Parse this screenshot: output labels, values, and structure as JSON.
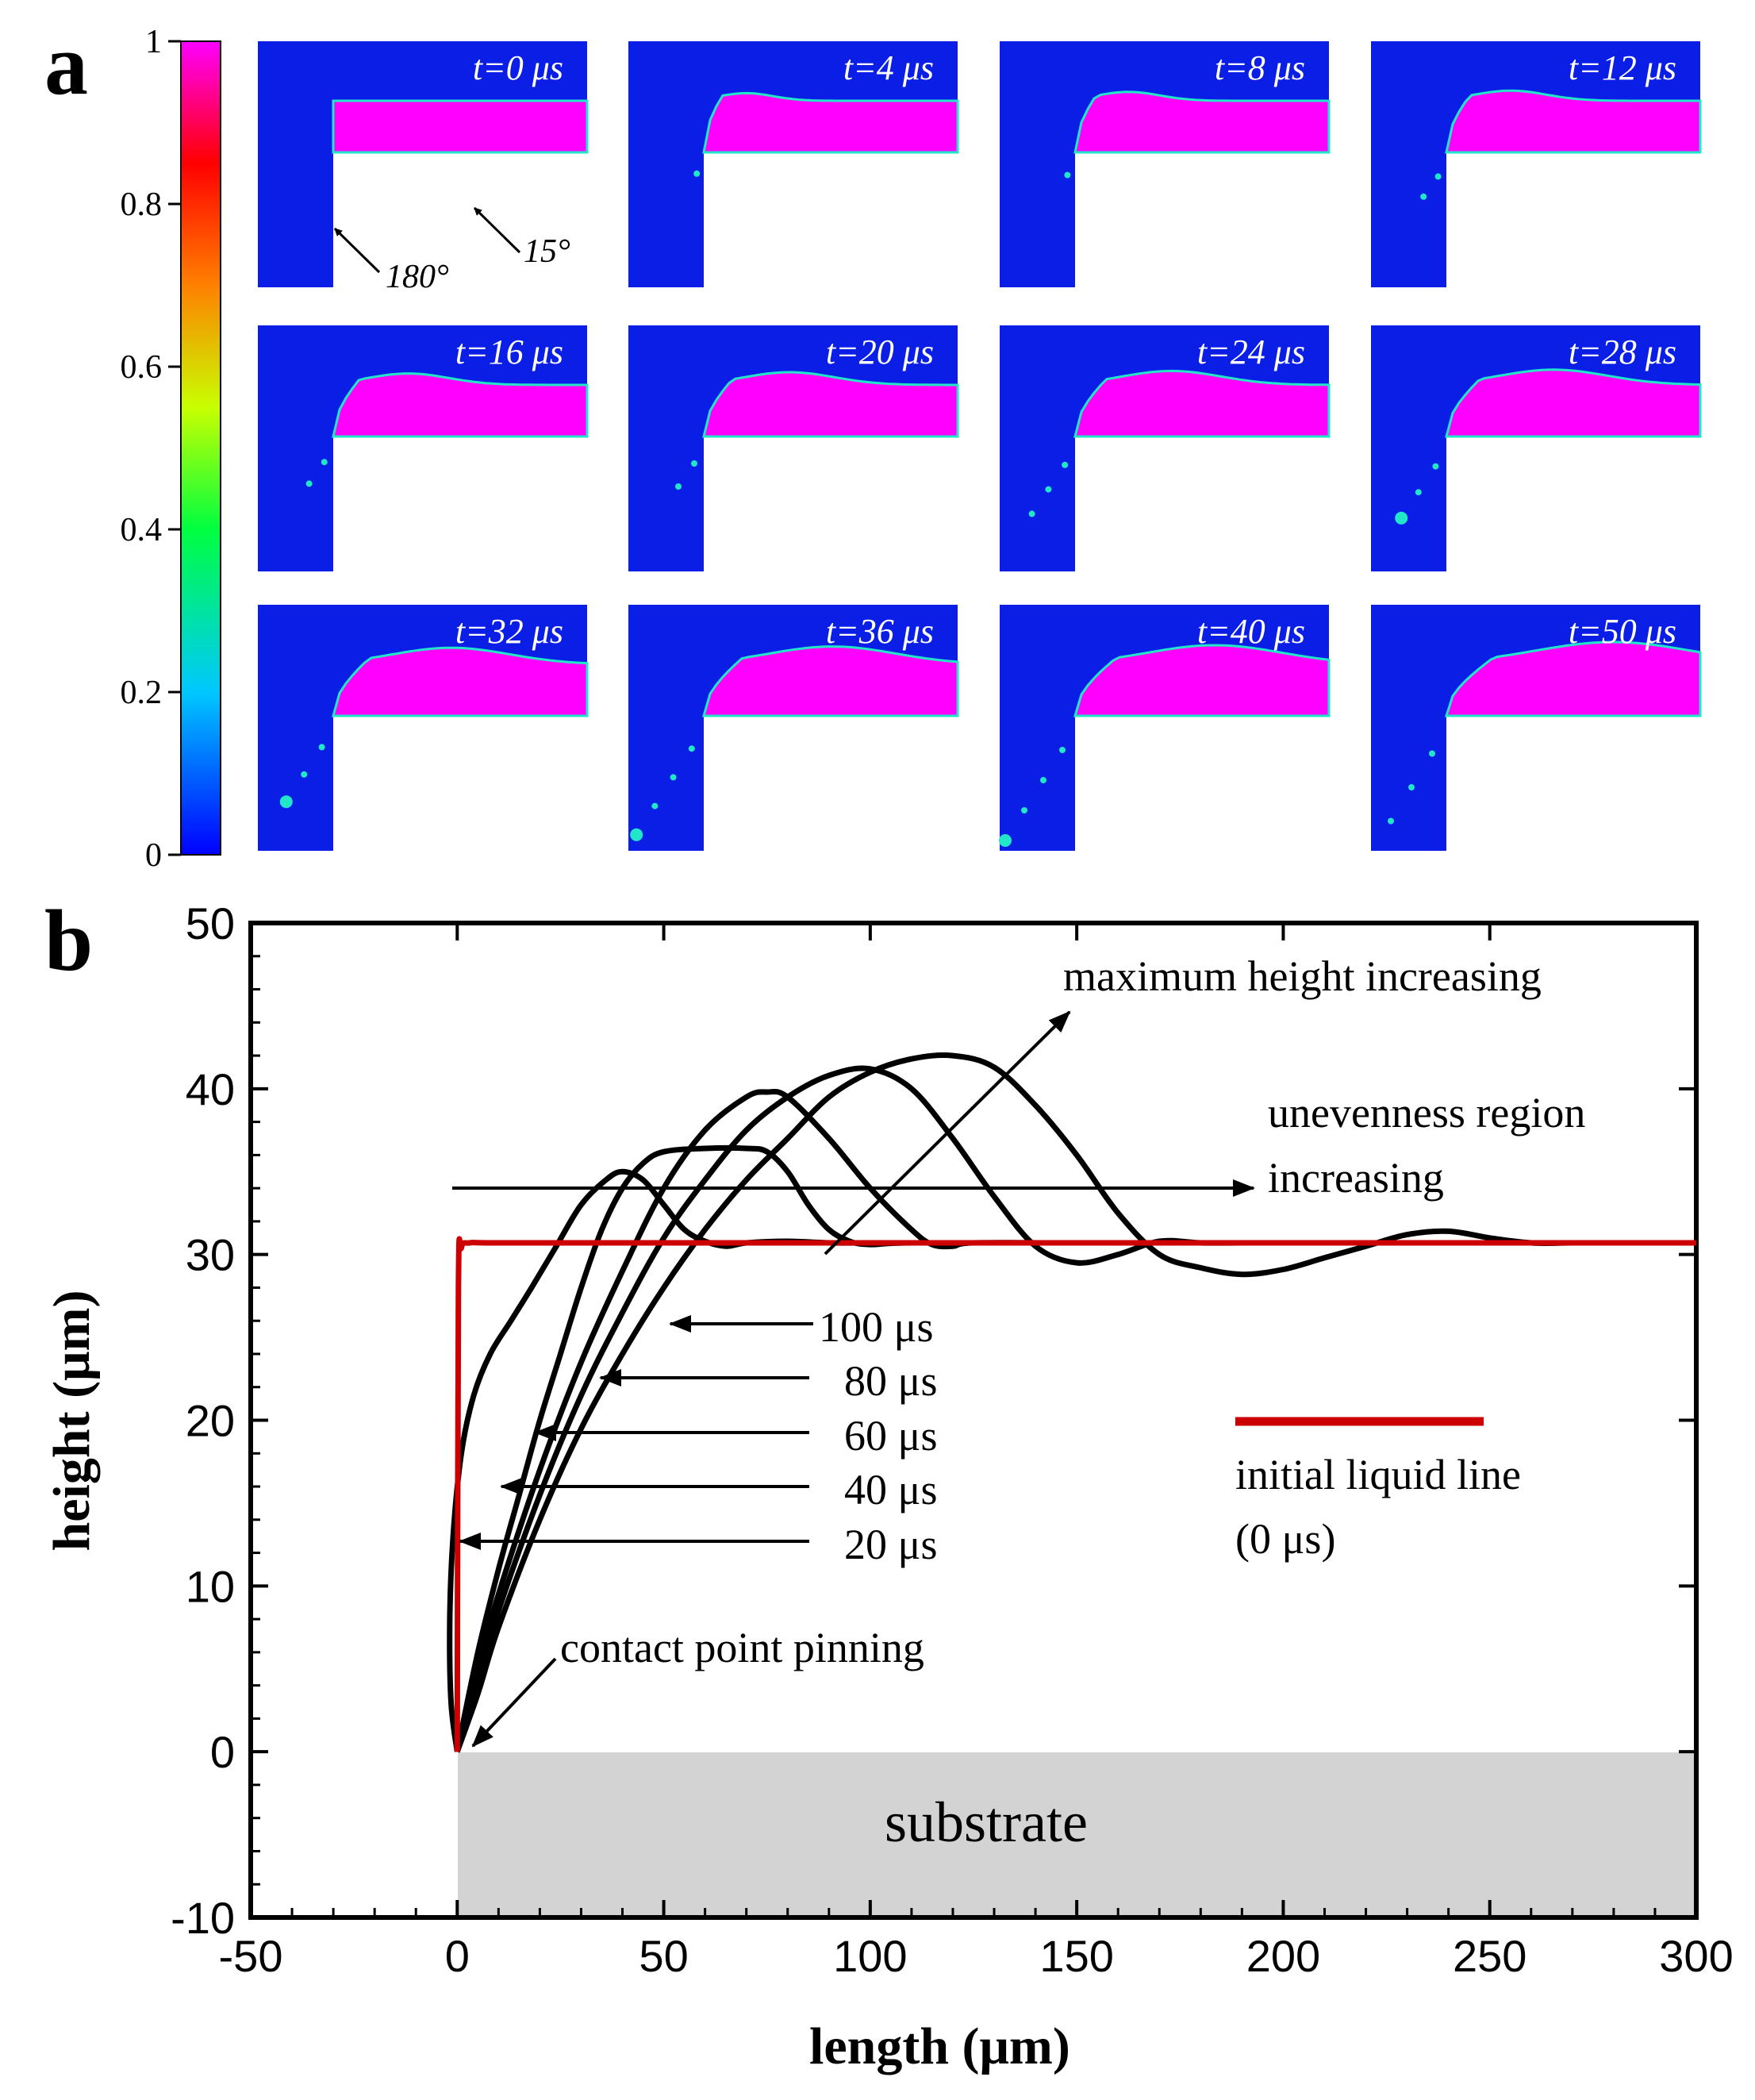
{
  "panel_a": {
    "letter": "a",
    "colorbar": {
      "ticks": [
        "1",
        "0.8",
        "0.6",
        "0.4",
        "0.2",
        "0"
      ],
      "min": 0,
      "max": 1
    },
    "snapshots": [
      {
        "label": "t=0 μs",
        "t": 0
      },
      {
        "label": "t=4 μs",
        "t": 4
      },
      {
        "label": "t=8 μs",
        "t": 8
      },
      {
        "label": "t=12 μs",
        "t": 12
      },
      {
        "label": "t=16 μs",
        "t": 16
      },
      {
        "label": "t=20 μs",
        "t": 20
      },
      {
        "label": "t=24 μs",
        "t": 24
      },
      {
        "label": "t=28 μs",
        "t": 28
      },
      {
        "label": "t=32 μs",
        "t": 32
      },
      {
        "label": "t=36 μs",
        "t": 36
      },
      {
        "label": "t=40 μs",
        "t": 40
      },
      {
        "label": "t=50 μs",
        "t": 50
      }
    ],
    "angle_wall": "180°",
    "angle_substrate": "15°",
    "colors": {
      "gas": "#0a1ee6",
      "liquid": "#ff00ff",
      "interface": "#22e6c8"
    }
  },
  "chart_data": {
    "panel_letter": "b",
    "type": "line",
    "xlabel": "length (μm)",
    "ylabel": "height (μm)",
    "xlim": [
      -50,
      300
    ],
    "ylim": [
      -10,
      50
    ],
    "xticks": [
      -50,
      0,
      50,
      100,
      150,
      200,
      250,
      300
    ],
    "yticks": [
      -10,
      0,
      10,
      20,
      30,
      40,
      50
    ],
    "xtick_labels": [
      "-50",
      "0",
      "50",
      "100",
      "150",
      "200",
      "250",
      "300"
    ],
    "ytick_labels": [
      "-10",
      "0",
      "10",
      "20",
      "30",
      "40",
      "50"
    ],
    "series": [
      {
        "name": "initial liquid line (0 μs)",
        "color": "#cc0000",
        "x": [
          0,
          0.3,
          1,
          3,
          10,
          50,
          100,
          150,
          200,
          250,
          300
        ],
        "y": [
          0,
          28,
          30.4,
          30.7,
          30.7,
          30.7,
          30.7,
          30.7,
          30.7,
          30.7,
          30.7
        ]
      },
      {
        "name": "20 μs",
        "color": "#000000",
        "x": [
          0,
          -1.5,
          -1.8,
          -1,
          1,
          4,
          8,
          13,
          18,
          24,
          30,
          36,
          40,
          45,
          50,
          55,
          60,
          65,
          70,
          80,
          90,
          100,
          150,
          200,
          250,
          300
        ],
        "y": [
          0,
          3,
          8,
          13,
          18,
          21.5,
          24,
          26,
          28,
          30.5,
          33,
          34.5,
          35,
          34.5,
          33,
          31.5,
          30.8,
          30.5,
          30.7,
          30.8,
          30.7,
          30.7,
          30.7,
          30.7,
          30.7,
          30.7
        ]
      },
      {
        "name": "40 μs",
        "color": "#000000",
        "x": [
          0,
          5,
          10,
          15,
          20,
          25,
          30,
          35,
          40,
          45,
          50,
          60,
          70,
          75,
          80,
          85,
          90,
          95,
          100,
          110,
          150,
          200,
          300
        ],
        "y": [
          0,
          6,
          11,
          15.5,
          20,
          24,
          28,
          31.5,
          34,
          35.5,
          36.2,
          36.4,
          36.4,
          36.2,
          35,
          33,
          31.5,
          30.8,
          30.6,
          30.7,
          30.7,
          30.7,
          30.7
        ]
      },
      {
        "name": "60 μs",
        "color": "#000000",
        "x": [
          0,
          5,
          10,
          20,
          30,
          40,
          50,
          60,
          70,
          75,
          80,
          90,
          100,
          110,
          115,
          120,
          125,
          150,
          200,
          300
        ],
        "y": [
          0,
          5,
          9.5,
          17,
          23.5,
          29,
          34,
          37.5,
          39.5,
          39.8,
          39.5,
          37,
          34,
          31.5,
          30.6,
          30.5,
          30.7,
          30.7,
          30.7,
          30.7
        ]
      },
      {
        "name": "80 μs",
        "color": "#000000",
        "x": [
          0,
          5,
          10,
          20,
          30,
          40,
          50,
          60,
          70,
          80,
          90,
          100,
          110,
          120,
          130,
          140,
          150,
          160,
          170,
          180,
          190,
          200,
          300
        ],
        "y": [
          0,
          4,
          8.5,
          15.5,
          21.5,
          26.5,
          31,
          34.5,
          37.5,
          39.5,
          40.8,
          41.2,
          40,
          37,
          33.5,
          30.5,
          29.5,
          30,
          30.8,
          30.7,
          30.7,
          30.7,
          30.7
        ]
      },
      {
        "name": "100 μs",
        "color": "#000000",
        "x": [
          0,
          5,
          10,
          20,
          30,
          40,
          50,
          60,
          70,
          80,
          90,
          100,
          110,
          120,
          130,
          140,
          150,
          160,
          170,
          180,
          190,
          200,
          210,
          220,
          230,
          240,
          250,
          260,
          270,
          280,
          290,
          300
        ],
        "y": [
          0,
          3.5,
          7.5,
          14,
          19.5,
          24,
          28,
          31.5,
          34.5,
          37,
          39.5,
          41,
          41.8,
          42,
          41.3,
          39,
          36,
          32.5,
          30,
          29.2,
          28.8,
          29.1,
          29.8,
          30.5,
          31.2,
          31.4,
          31,
          30.7,
          30.7,
          30.7,
          30.7,
          30.7
        ]
      }
    ],
    "annotations": {
      "max_height": "maximum height increasing",
      "uneven_line1": "unevenness region",
      "uneven_line2": "increasing",
      "contact": "contact point pinning",
      "legend_line1": "initial liquid line",
      "legend_line2": "(0 μs)",
      "substrate": "substrate",
      "time_labels": [
        "100 μs",
        "80 μs",
        "60 μs",
        "40 μs",
        "20 μs"
      ]
    }
  }
}
